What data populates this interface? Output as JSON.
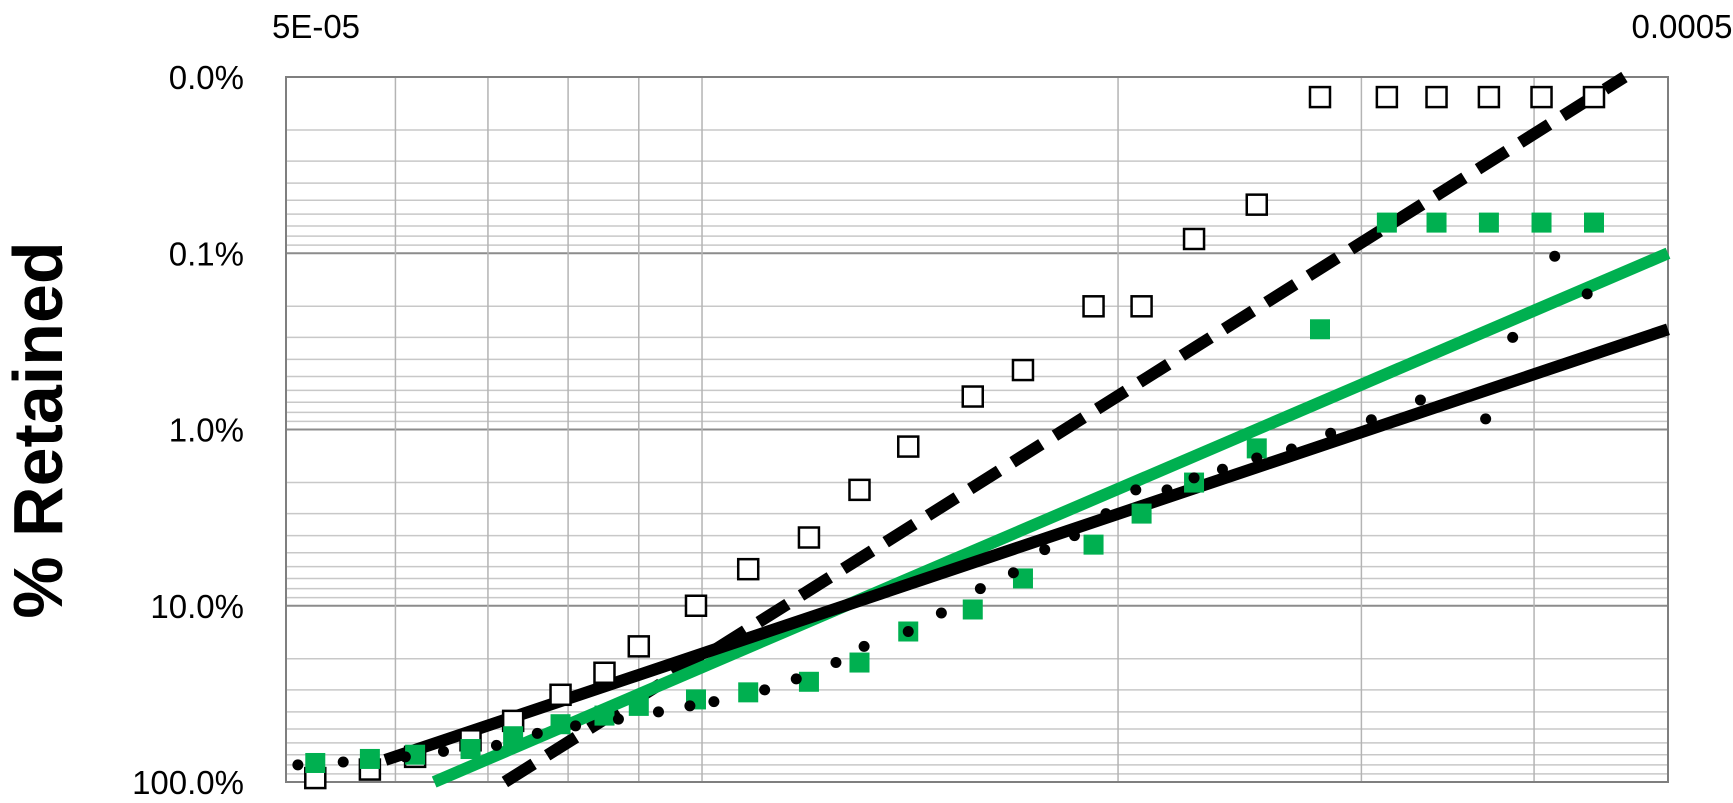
{
  "chart_data": {
    "type": "scatter",
    "title": "",
    "xlabel": "",
    "ylabel": "% Retained",
    "x_scale": "log",
    "y_scale": "log-reversed",
    "xlim": [
      5e-05,
      0.0005
    ],
    "ylim": [
      0.01,
      100
    ],
    "x_tick_labels": [
      {
        "value": 5e-05,
        "label": "5E-05"
      },
      {
        "value": 0.0005,
        "label": "0.0005"
      }
    ],
    "y_tick_labels": [
      {
        "value": 0.01,
        "label": "0.0%"
      },
      {
        "value": 0.1,
        "label": "0.1%"
      },
      {
        "value": 1,
        "label": "1.0%"
      },
      {
        "value": 10,
        "label": "10.0%"
      },
      {
        "value": 100,
        "label": "100.0%"
      }
    ],
    "grid": true,
    "legend": "none",
    "series": [
      {
        "kind": "points",
        "marker": "open-square",
        "color": "#000000",
        "points": [
          [
            5.25e-05,
            95
          ],
          [
            5.75e-05,
            85
          ],
          [
            6.2e-05,
            72
          ],
          [
            6.8e-05,
            58
          ],
          [
            7.3e-05,
            45
          ],
          [
            7.9e-05,
            32
          ],
          [
            8.5e-05,
            24
          ],
          [
            9e-05,
            17
          ],
          [
            9.9e-05,
            10
          ],
          [
            0.000108,
            6.2
          ],
          [
            0.0001195,
            4.1
          ],
          [
            0.00013,
            2.2
          ],
          [
            0.000141,
            1.25
          ],
          [
            0.000157,
            0.65
          ],
          [
            0.0001707,
            0.46
          ],
          [
            0.000192,
            0.2
          ],
          [
            0.000208,
            0.2
          ],
          [
            0.000227,
            0.083
          ],
          [
            0.000252,
            0.053
          ],
          [
            0.00028,
            0.013
          ],
          [
            0.000313,
            0.013
          ],
          [
            0.00034,
            0.013
          ],
          [
            0.000371,
            0.013
          ],
          [
            0.000405,
            0.013
          ],
          [
            0.000442,
            0.013
          ]
        ]
      },
      {
        "kind": "points",
        "marker": "filled-square",
        "color": "#00b050",
        "points": [
          [
            5.25e-05,
            78
          ],
          [
            5.75e-05,
            74
          ],
          [
            6.2e-05,
            70
          ],
          [
            6.8e-05,
            65
          ],
          [
            7.3e-05,
            55
          ],
          [
            7.9e-05,
            47
          ],
          [
            8.5e-05,
            42
          ],
          [
            9e-05,
            37
          ],
          [
            9.9e-05,
            34
          ],
          [
            0.000108,
            31
          ],
          [
            0.0001195,
            27
          ],
          [
            0.00013,
            21
          ],
          [
            0.000141,
            14
          ],
          [
            0.000157,
            10.5
          ],
          [
            0.0001707,
            7
          ],
          [
            0.000192,
            4.5
          ],
          [
            0.000208,
            3
          ],
          [
            0.000227,
            2
          ],
          [
            0.000252,
            1.28
          ],
          [
            0.00028,
            0.27
          ],
          [
            0.000313,
            0.067
          ],
          [
            0.00034,
            0.067
          ],
          [
            0.000371,
            0.067
          ],
          [
            0.000405,
            0.067
          ],
          [
            0.000442,
            0.067
          ]
        ]
      },
      {
        "kind": "points",
        "marker": "dot",
        "color": "#000000",
        "points": [
          [
            5.1e-05,
            80
          ],
          [
            5.5e-05,
            77
          ],
          [
            6.1e-05,
            72
          ],
          [
            6.5e-05,
            67
          ],
          [
            7.1e-05,
            62
          ],
          [
            7.6e-05,
            53
          ],
          [
            8.1e-05,
            48
          ],
          [
            8.7e-05,
            44
          ],
          [
            9.3e-05,
            40
          ],
          [
            9.8e-05,
            37
          ],
          [
            0.000102,
            35
          ],
          [
            0.000111,
            30
          ],
          [
            0.000117,
            26
          ],
          [
            0.000125,
            21
          ],
          [
            0.000131,
            17
          ],
          [
            0.000141,
            14
          ],
          [
            0.000149,
            11
          ],
          [
            0.000159,
            8
          ],
          [
            0.000168,
            6.5
          ],
          [
            0.000177,
            4.8
          ],
          [
            0.000186,
            4
          ],
          [
            0.000196,
            3
          ],
          [
            0.000206,
            2.2
          ],
          [
            0.000217,
            2.2
          ],
          [
            0.000227,
            1.88
          ],
          [
            0.000238,
            1.68
          ],
          [
            0.000252,
            1.45
          ],
          [
            0.000267,
            1.29
          ],
          [
            0.000285,
            1.05
          ],
          [
            0.000305,
            0.88
          ],
          [
            0.000331,
            0.68
          ],
          [
            0.000369,
            0.87
          ],
          [
            0.000386,
            0.3
          ],
          [
            0.000414,
            0.104
          ],
          [
            0.000437,
            0.17
          ]
        ]
      },
      {
        "kind": "line",
        "style": "dashed",
        "color": "#000000",
        "points": [
          [
            7.2e-05,
            100
          ],
          [
            0.000465,
            0.01
          ]
        ]
      },
      {
        "kind": "line",
        "style": "solid",
        "color": "#00b050",
        "points": [
          [
            6.4e-05,
            100
          ],
          [
            0.0005,
            0.1
          ]
        ]
      },
      {
        "kind": "line",
        "style": "solid",
        "color": "#000000",
        "points": [
          [
            5.9e-05,
            75
          ],
          [
            0.0005,
            0.27
          ]
        ]
      }
    ]
  }
}
